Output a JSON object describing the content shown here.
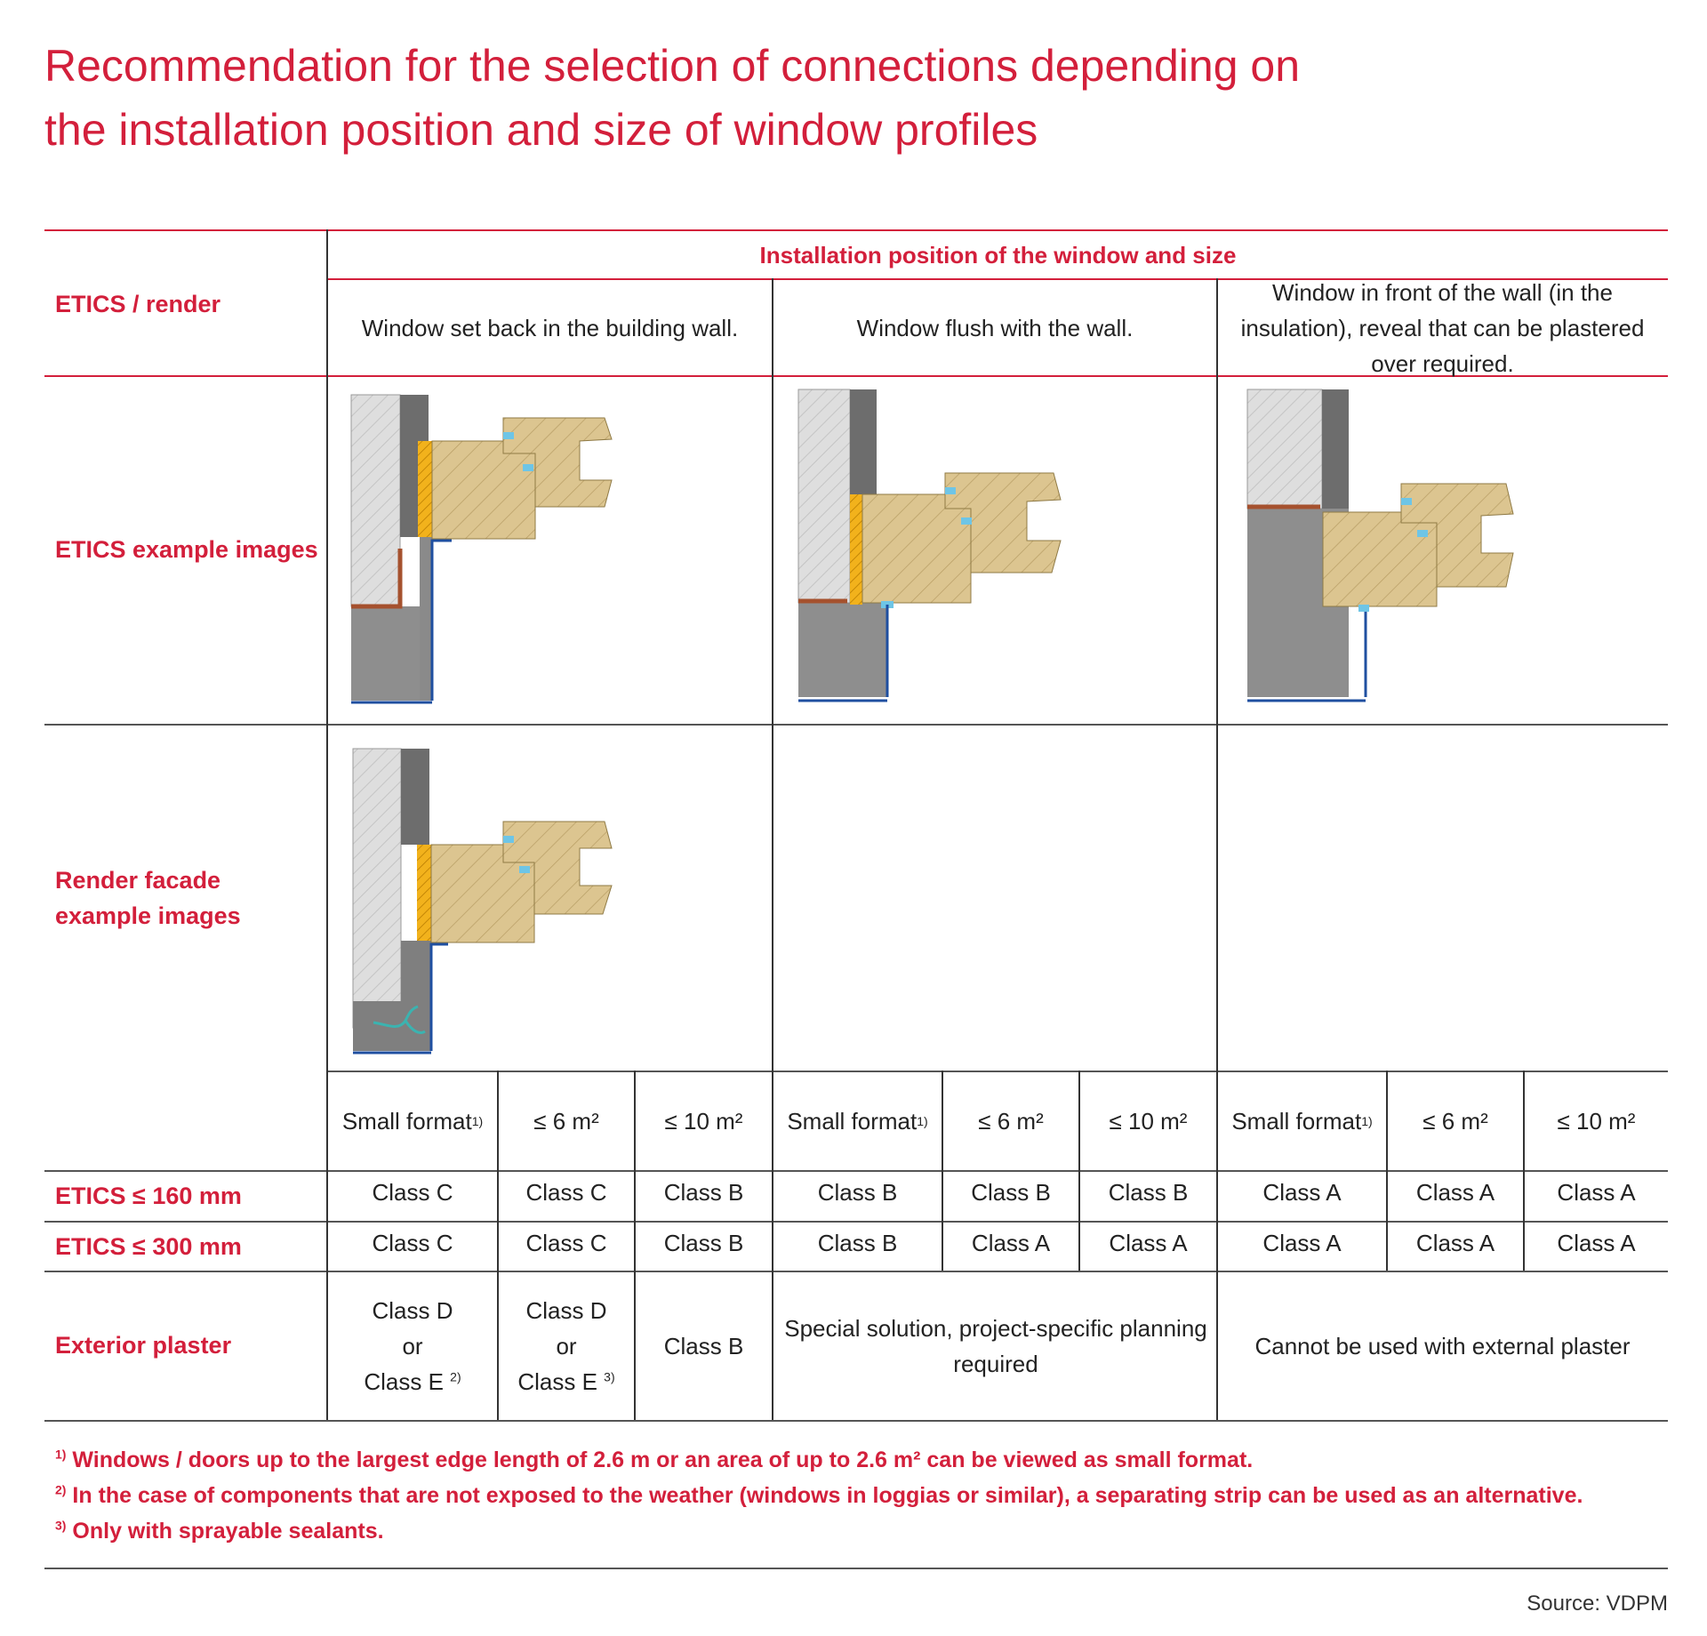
{
  "title_line1": "Recommendation for the selection of connections depending on",
  "title_line2": "the installation position and size of window profiles",
  "header": {
    "group_label": "Installation position of the window and size",
    "row_label": "ETICS / render",
    "columns": [
      "Window set back in the building wall.",
      "Window flush with the wall.",
      "Window in front of the wall (in the insulation), reveal that can be plastered over required."
    ]
  },
  "row_labels": {
    "etics_images": "ETICS example images",
    "render_images": "Render facade example images"
  },
  "sizes": [
    {
      "label": "Small format",
      "sup": "1)"
    },
    {
      "label": "≤ 6 m²",
      "sup": ""
    },
    {
      "label": "≤ 10 m²",
      "sup": ""
    },
    {
      "label": "Small format",
      "sup": "1)"
    },
    {
      "label": "≤ 6 m²",
      "sup": ""
    },
    {
      "label": "≤ 10 m²",
      "sup": ""
    },
    {
      "label": "Small format",
      "sup": "1)"
    },
    {
      "label": "≤ 6 m²",
      "sup": ""
    },
    {
      "label": "≤ 10 m²",
      "sup": ""
    }
  ],
  "rows": [
    {
      "label": "ETICS ≤ 160 mm",
      "values": [
        "Class C",
        "Class C",
        "Class B",
        "Class B",
        "Class B",
        "Class B",
        "Class A",
        "Class A",
        "Class A"
      ]
    },
    {
      "label": "ETICS ≤ 300 mm",
      "values": [
        "Class C",
        "Class C",
        "Class B",
        "Class B",
        "Class A",
        "Class A",
        "Class A",
        "Class A",
        "Class A"
      ]
    }
  ],
  "exterior": {
    "label": "Exterior plaster",
    "c1": {
      "l1": "Class D",
      "l2": "or",
      "l3": "Class E",
      "sup": "2)"
    },
    "c2": {
      "l1": "Class D",
      "l2": "or",
      "l3": "Class E",
      "sup": "3)"
    },
    "c3": "Class B",
    "flush": "Special solution, project-specific planning required",
    "front": "Cannot be used with external plaster"
  },
  "footnotes": [
    {
      "sup": "1)",
      "text": "Windows / doors up to the largest edge length of 2.6 m or an area of up to 2.6 m² can be viewed as small format."
    },
    {
      "sup": "2)",
      "text": "In the case of components that are not exposed to the weather (windows in loggias or similar), a separating strip can be used as an alternative."
    },
    {
      "sup": "3)",
      "text": "Only with sprayable sealants."
    }
  ],
  "source": "Source: VDPM",
  "colors": {
    "accent": "#d31f3b",
    "wood": "#dcc590",
    "insulation": "#8e8e8e",
    "masonry": "#dedede",
    "tape": "#f2b21c"
  }
}
